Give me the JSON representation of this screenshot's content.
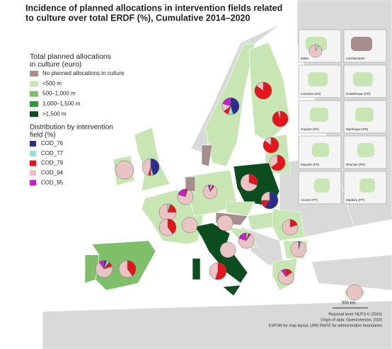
{
  "title": {
    "lines": [
      "Incidence of planned allocations in intervention fields related",
      "to culture over total ERDF (%), Cumulative 2014–2020"
    ],
    "color": "#1e5aa8"
  },
  "legend": {
    "title_lines": [
      "Total planned allocations",
      "in culture (euro)"
    ],
    "classes": [
      {
        "label": "No planned allocations in culture",
        "color": "#a68e8e"
      },
      {
        "label": "<500 m",
        "color": "#c8e6b4"
      },
      {
        "label": "500–1,000 m",
        "color": "#7fbf6a"
      },
      {
        "label": "1,000–1,500 m",
        "color": "#2f9a3c"
      },
      {
        "label": ">1,500 m",
        "color": "#0b4d1e"
      }
    ]
  },
  "pie_legend": {
    "title_lines": [
      "Distribution by intervention",
      "field (%)"
    ],
    "fields": [
      {
        "label": "COD_76",
        "color": "#2b2d8c"
      },
      {
        "label": "COD_77",
        "color": "#9be0d2"
      },
      {
        "label": "COD_79",
        "color": "#e8141c"
      },
      {
        "label": "COD_94",
        "color": "#eac4c4"
      },
      {
        "label": "COD_95",
        "color": "#c81ecb"
      }
    ]
  },
  "insets": [
    "Malta",
    "Liechtenstein",
    "Canarias (ES)",
    "Guadeloupe (FR)",
    "Guyane (FR)",
    "Martinique (FR)",
    "Mayotte (FR)",
    "Réunion (FR)",
    "Acores (PT)",
    "Madeira (PT)"
  ],
  "pies": [
    {
      "values": [
        0,
        10,
        0,
        90,
        0
      ]
    },
    {
      "values": [
        45,
        10,
        10,
        15,
        20
      ]
    },
    {
      "values": [
        0,
        0,
        85,
        15,
        0
      ]
    },
    {
      "values": [
        0,
        0,
        95,
        5,
        0
      ]
    },
    {
      "values": [
        0,
        0,
        85,
        15,
        0
      ]
    },
    {
      "values": [
        0,
        0,
        65,
        35,
        0
      ]
    },
    {
      "values": [
        0,
        0,
        0,
        100,
        0
      ]
    },
    {
      "values": [
        45,
        5,
        5,
        45,
        0
      ]
    },
    {
      "values": [
        0,
        0,
        5,
        75,
        20
      ]
    },
    {
      "values": [
        0,
        5,
        5,
        85,
        5
      ]
    },
    {
      "values": [
        0,
        0,
        30,
        70,
        0
      ]
    },
    {
      "values": [
        60,
        0,
        15,
        25,
        0
      ]
    },
    {
      "values": [
        0,
        5,
        20,
        75,
        0
      ]
    },
    {
      "values": [
        0,
        0,
        40,
        60,
        0
      ]
    },
    {
      "values": [
        0,
        0,
        0,
        100,
        0
      ]
    },
    {
      "values": [
        0,
        0,
        0,
        100,
        0
      ]
    },
    {
      "values": [
        0,
        5,
        5,
        70,
        20
      ]
    },
    {
      "values": [
        0,
        0,
        20,
        80,
        0
      ]
    },
    {
      "values": [
        3,
        2,
        0,
        95,
        0
      ]
    },
    {
      "values": [
        0,
        0,
        15,
        75,
        10
      ]
    },
    {
      "values": [
        0,
        0,
        0,
        100,
        0
      ]
    },
    {
      "values": [
        0,
        0,
        55,
        45,
        0
      ]
    },
    {
      "values": [
        0,
        0,
        40,
        60,
        0
      ]
    },
    {
      "values": [
        5,
        5,
        10,
        70,
        10
      ]
    },
    {
      "values": [
        0,
        0,
        0,
        100,
        0
      ]
    }
  ],
  "scale_bar": "500 km",
  "credits": [
    "Regional level: NUTS © (2016)",
    "Origin of data: Opencohesion, 2020",
    "ESPON for map layout, UMS RIATE for administrative boundaries"
  ]
}
